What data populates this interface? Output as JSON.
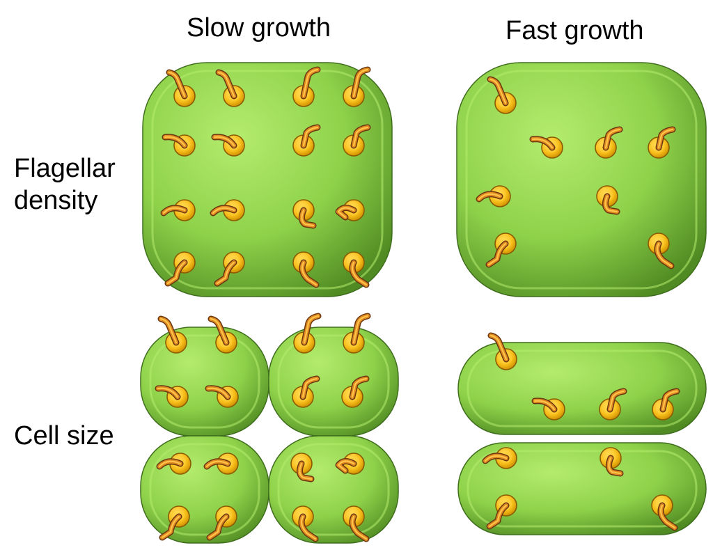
{
  "columns": {
    "slow": "Slow growth",
    "fast": "Fast growth"
  },
  "rows": {
    "density_line1": "Flagellar",
    "density_line2": "density",
    "size": "Cell size"
  },
  "colors": {
    "cell_fill": "#8fd24a",
    "cell_highlight": "#b4ec6e",
    "cell_edge": "#3f6e1d",
    "motor_fill": "#f7be1a",
    "motor_edge": "#8a5a00",
    "flagellum": "#e08a22",
    "flagellum_light": "#ffc54a",
    "flagellum_dark": "#6b3710"
  }
}
